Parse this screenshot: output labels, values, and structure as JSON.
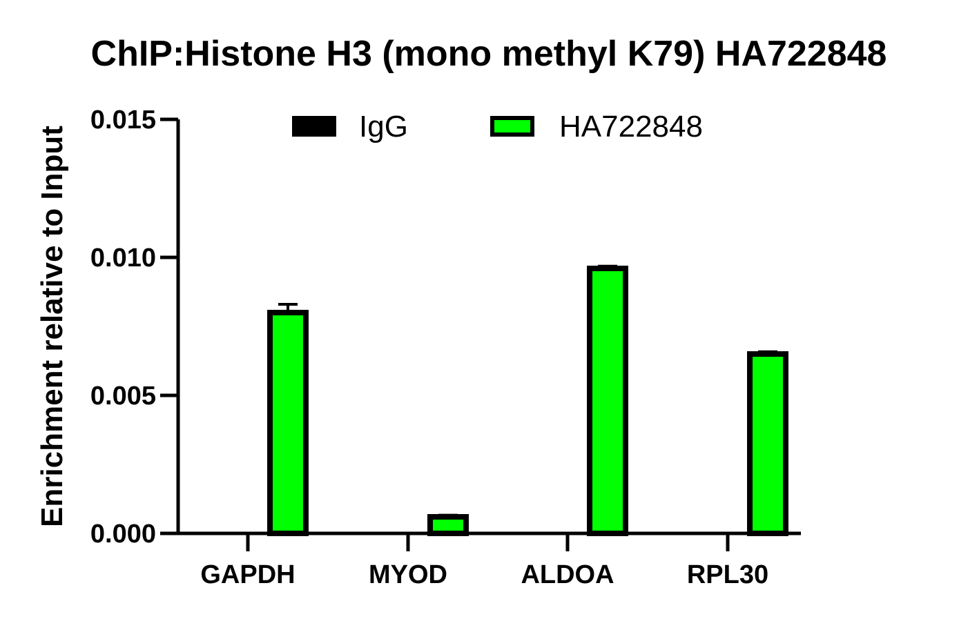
{
  "chart_data": {
    "type": "bar",
    "title": "ChIP:Histone H3 (mono methyl K79) HA722848",
    "ylabel": "Enrichment relative to Input",
    "xlabel": "",
    "categories": [
      "GAPDH",
      "MYOD",
      "ALDOA",
      "RPL30"
    ],
    "ylim": [
      0,
      0.015
    ],
    "yticks": [
      0.0,
      0.005,
      0.01,
      0.015
    ],
    "ytick_labels": [
      "0.000",
      "0.005",
      "0.010",
      "0.015"
    ],
    "legend_position": "top",
    "grid": false,
    "series": [
      {
        "name": "IgG",
        "color": "#000000",
        "values": [
          3e-05,
          1e-05,
          2e-05,
          3e-05
        ],
        "errors": [
          1e-05,
          1e-05,
          1e-05,
          1e-05
        ]
      },
      {
        "name": "HA722848",
        "color": "#00ff00",
        "values": [
          0.008,
          0.0006,
          0.0096,
          0.0065
        ],
        "errors": [
          0.0003,
          6e-05,
          8e-05,
          8e-05
        ]
      }
    ]
  }
}
